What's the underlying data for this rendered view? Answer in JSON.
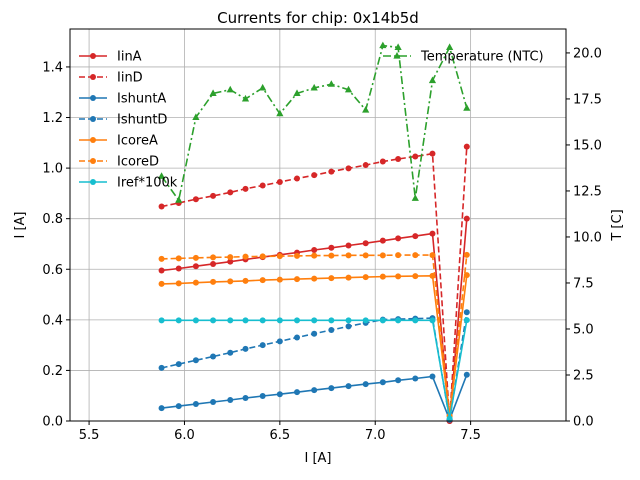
{
  "chart_data": {
    "type": "line",
    "title": "Currents for chip: 0x14b5d",
    "xlabel": "I [A]",
    "ylabel_left": "I [A]",
    "ylabel_right": "T [C]",
    "xlim": [
      5.4,
      8.0
    ],
    "ylim_left": [
      0,
      1.55
    ],
    "ylim_right": [
      0,
      21.3
    ],
    "xticks": [
      5.5,
      6.0,
      6.5,
      7.0,
      7.5
    ],
    "xtick_labels": [
      "5.5",
      "6.0",
      "6.5",
      "7.0",
      "7.5"
    ],
    "yticks_left": [
      0.0,
      0.2,
      0.4,
      0.6,
      0.8,
      1.0,
      1.2,
      1.4
    ],
    "ytick_labels_left": [
      "0.0",
      "0.2",
      "0.4",
      "0.6",
      "0.8",
      "1.0",
      "1.2",
      "1.4"
    ],
    "yticks_right": [
      0.0,
      2.5,
      5.0,
      7.5,
      10.0,
      12.5,
      15.0,
      17.5,
      20.0
    ],
    "ytick_labels_right": [
      "0.0",
      "2.5",
      "5.0",
      "7.5",
      "10.0",
      "12.5",
      "15.0",
      "17.5",
      "20.0"
    ],
    "grid": true,
    "legend_left_placement": "upper-left",
    "legend_right_placement": "upper-right",
    "x": [
      5.88,
      5.97,
      6.06,
      6.15,
      6.24,
      6.32,
      6.41,
      6.5,
      6.59,
      6.68,
      6.77,
      6.86,
      6.95,
      7.04,
      7.12,
      7.21,
      7.3,
      7.39,
      7.48
    ],
    "series": [
      {
        "name": "IinA",
        "color": "#d62728",
        "dash": "solid",
        "marker": "circle",
        "values": [
          0.595,
          0.603,
          0.612,
          0.621,
          0.63,
          0.639,
          0.648,
          0.657,
          0.666,
          0.676,
          0.685,
          0.694,
          0.703,
          0.713,
          0.722,
          0.731,
          0.741,
          0.0,
          0.8
        ]
      },
      {
        "name": "IinD",
        "color": "#d62728",
        "dash": "dashed",
        "marker": "circle",
        "values": [
          0.848,
          0.862,
          0.877,
          0.89,
          0.904,
          0.918,
          0.931,
          0.945,
          0.959,
          0.972,
          0.986,
          0.999,
          1.012,
          1.026,
          1.036,
          1.046,
          1.057,
          0.0,
          1.085
        ]
      },
      {
        "name": "IshuntA",
        "color": "#1f77b4",
        "dash": "solid",
        "marker": "circle",
        "values": [
          0.051,
          0.059,
          0.067,
          0.075,
          0.083,
          0.091,
          0.099,
          0.106,
          0.114,
          0.122,
          0.13,
          0.138,
          0.146,
          0.153,
          0.161,
          0.168,
          0.176,
          0.005,
          0.183
        ]
      },
      {
        "name": "IshuntD",
        "color": "#1f77b4",
        "dash": "dashed",
        "marker": "circle",
        "values": [
          0.21,
          0.225,
          0.24,
          0.255,
          0.27,
          0.285,
          0.3,
          0.315,
          0.33,
          0.345,
          0.36,
          0.374,
          0.388,
          0.401,
          0.403,
          0.405,
          0.407,
          0.005,
          0.43
        ]
      },
      {
        "name": "IcoreA",
        "color": "#ff7f0e",
        "dash": "solid",
        "marker": "circle",
        "values": [
          0.542,
          0.544,
          0.547,
          0.55,
          0.552,
          0.554,
          0.557,
          0.559,
          0.561,
          0.563,
          0.565,
          0.567,
          0.569,
          0.571,
          0.572,
          0.573,
          0.574,
          0.02,
          0.577
        ]
      },
      {
        "name": "IcoreD",
        "color": "#ff7f0e",
        "dash": "dashed",
        "marker": "circle",
        "values": [
          0.641,
          0.643,
          0.645,
          0.647,
          0.648,
          0.65,
          0.651,
          0.652,
          0.653,
          0.654,
          0.654,
          0.655,
          0.655,
          0.655,
          0.656,
          0.656,
          0.656,
          0.02,
          0.657
        ]
      },
      {
        "name": "Iref*100k",
        "color": "#17becf",
        "dash": "solid",
        "marker": "circle",
        "values": [
          0.398,
          0.398,
          0.398,
          0.398,
          0.398,
          0.398,
          0.398,
          0.398,
          0.398,
          0.398,
          0.398,
          0.398,
          0.398,
          0.398,
          0.398,
          0.398,
          0.398,
          0.01,
          0.399
        ]
      }
    ],
    "temperature": {
      "name": "Temperature (NTC)",
      "color": "#2ca02c",
      "dash": "dashdot",
      "marker": "triangle",
      "axis": "right",
      "values": [
        13.3,
        12.0,
        16.5,
        17.8,
        18.0,
        17.5,
        18.1,
        16.7,
        17.8,
        18.1,
        18.3,
        18.0,
        16.9,
        20.4,
        20.3,
        12.1,
        18.5,
        20.3,
        17.0
      ]
    }
  }
}
